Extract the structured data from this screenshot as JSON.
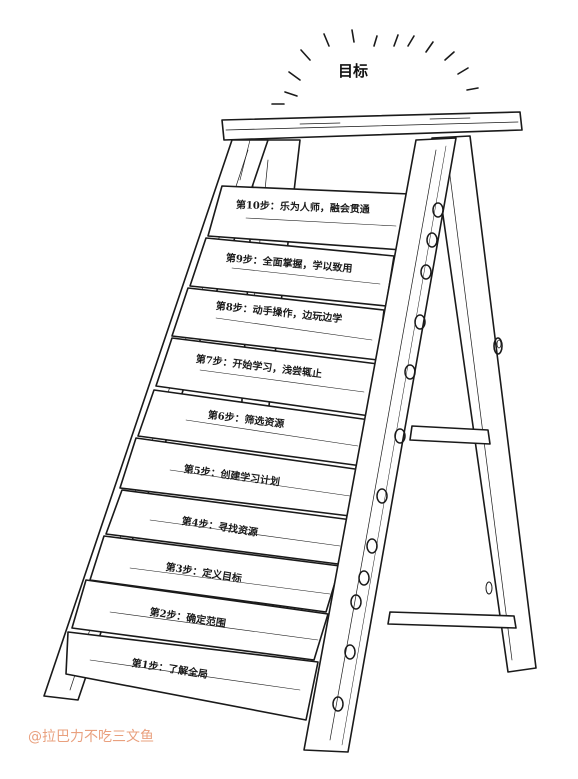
{
  "goal": {
    "title": "目标"
  },
  "steps": [
    {
      "label": "第1步：了解全局"
    },
    {
      "label": "第2步：确定范围"
    },
    {
      "label": "第3步：定义目标"
    },
    {
      "label": "第4步：寻找资源"
    },
    {
      "label": "第5步：创建学习计划"
    },
    {
      "label": "第6步：筛选资源"
    },
    {
      "label": "第7步：开始学习，浅尝辄止"
    },
    {
      "label": "第8步：动手操作，边玩边学"
    },
    {
      "label": "第9步：全面掌握，学以致用"
    },
    {
      "label": "第10步：乐为人师，融会贯通"
    }
  ],
  "watermark": {
    "text": "@拉巴力不吃三文鱼"
  },
  "colors": {
    "ink": "#1a1a1a",
    "watermark": "#e9a07e",
    "wood": "#ffffff"
  }
}
